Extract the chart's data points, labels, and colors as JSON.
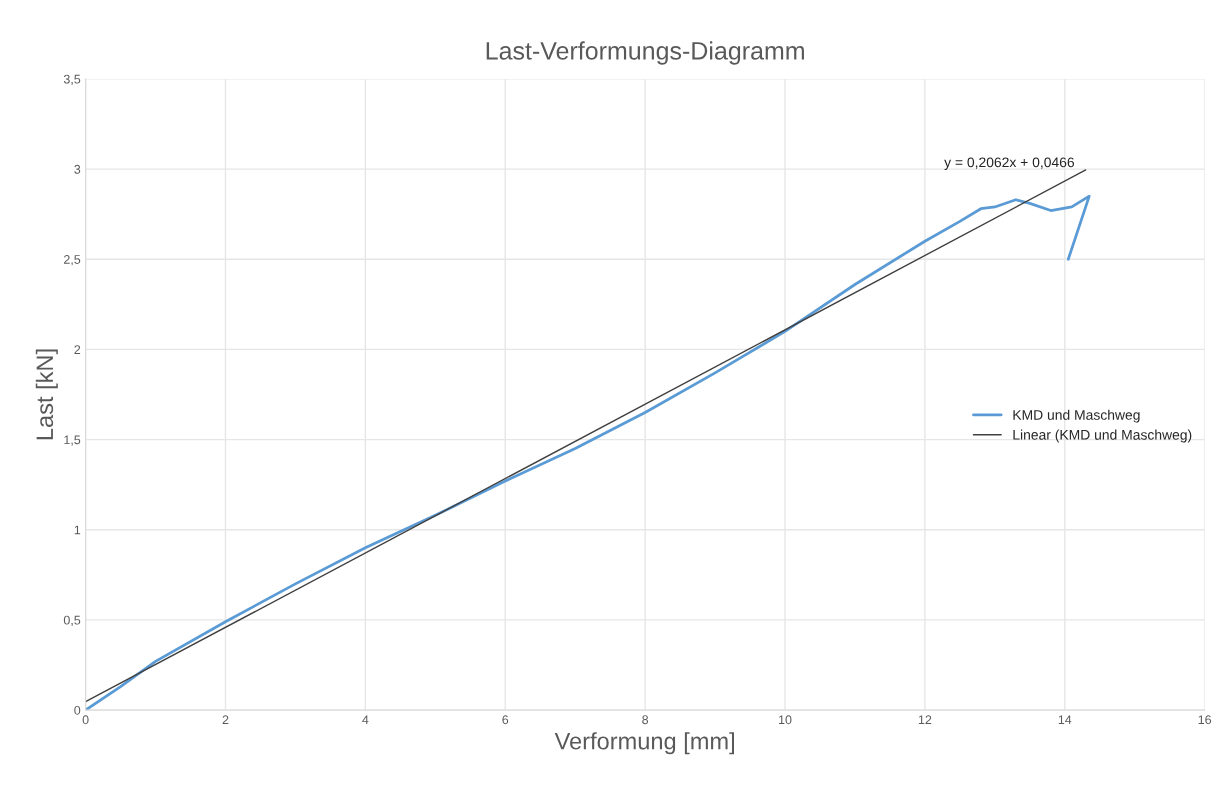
{
  "chart_data": {
    "type": "line",
    "title": "Last-Verformungs-Diagramm",
    "xlabel": "Verformung [mm]",
    "ylabel": "Last [kN]",
    "series": [
      {
        "name": "KMD und Maschweg",
        "color": "#5b9bd5",
        "x": [
          0,
          0.5,
          1,
          2,
          3,
          4,
          5,
          6,
          7,
          8,
          9,
          10,
          11,
          12,
          12.5,
          12.8,
          13,
          13.3,
          13.5,
          13.8,
          14.1,
          14.35,
          14.05
        ],
        "values": [
          0,
          0.13,
          0.27,
          0.49,
          0.7,
          0.9,
          1.08,
          1.27,
          1.45,
          1.65,
          1.87,
          2.1,
          2.36,
          2.6,
          2.71,
          2.78,
          2.79,
          2.83,
          2.81,
          2.77,
          2.79,
          2.85,
          2.5
        ]
      },
      {
        "name": "Linear (KMD und Maschweg)",
        "color": "#404040",
        "x": [
          0,
          14.3
        ],
        "values": [
          0.0466,
          2.995
        ]
      }
    ],
    "annotations": [
      {
        "text": "y = 0,2062x + 0,0466",
        "x": 14.3,
        "y": 2.995
      }
    ],
    "xlim": [
      0,
      16
    ],
    "xticks": [
      0,
      2,
      4,
      6,
      8,
      10,
      12,
      14,
      16
    ],
    "ylim": [
      0,
      3.5
    ],
    "yticks": [
      0,
      {
        "value": 0.5,
        "label": "0,5"
      },
      1,
      {
        "value": 1.5,
        "label": "1,5"
      },
      2,
      {
        "value": 2.5,
        "label": "2,5"
      },
      3,
      {
        "value": 3.5,
        "label": "3,5"
      }
    ],
    "grid": true,
    "legend": "right",
    "marker": "none",
    "line_style": "solid"
  }
}
